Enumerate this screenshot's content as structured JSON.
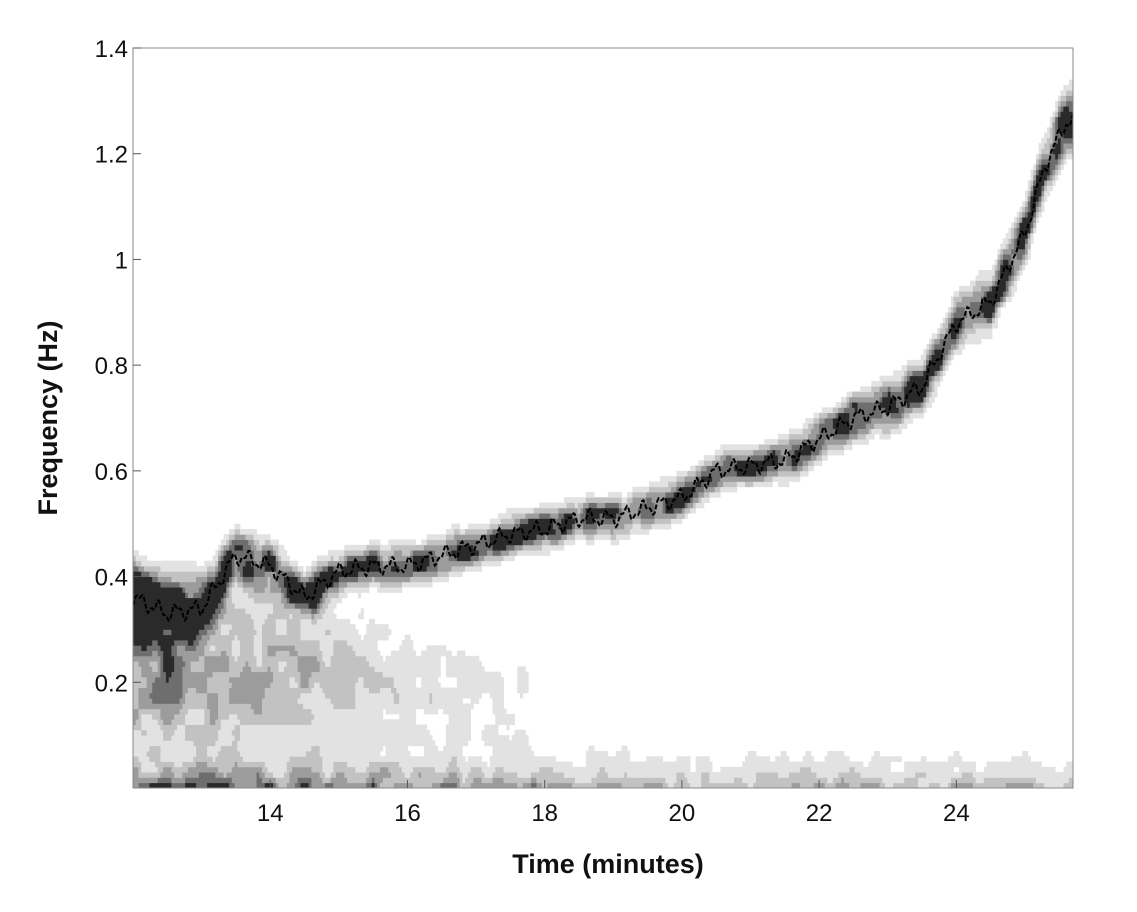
{
  "chart_data": {
    "type": "heatmap",
    "xlabel": "Time (minutes)",
    "ylabel": "Frequency (Hz)",
    "xlim": [
      12.0,
      25.7
    ],
    "ylim": [
      0.0,
      1.4
    ],
    "x_ticks": [
      14,
      16,
      18,
      20,
      22,
      24
    ],
    "y_ticks": [
      0.2,
      0.4,
      0.6,
      0.8,
      1,
      1.2,
      1.4
    ],
    "grid": false,
    "colormap": "grayscale contour (white = low power, black = high power)",
    "series": [
      {
        "kind": "ridge",
        "x": [
          12.0,
          12.5,
          13.0,
          13.5,
          14.0,
          14.5,
          15.0,
          15.5,
          16.0,
          16.5,
          17.0,
          17.5,
          18.0,
          18.5,
          19.0,
          19.5,
          20.0,
          20.5,
          21.0,
          21.5,
          22.0,
          22.5,
          23.0,
          23.5,
          24.0,
          24.5,
          25.0,
          25.3,
          25.6
        ],
        "y": [
          0.36,
          0.33,
          0.34,
          0.44,
          0.42,
          0.36,
          0.41,
          0.42,
          0.42,
          0.44,
          0.46,
          0.48,
          0.49,
          0.51,
          0.51,
          0.53,
          0.55,
          0.6,
          0.61,
          0.62,
          0.66,
          0.7,
          0.72,
          0.76,
          0.88,
          0.92,
          1.05,
          1.18,
          1.26
        ]
      }
    ]
  }
}
